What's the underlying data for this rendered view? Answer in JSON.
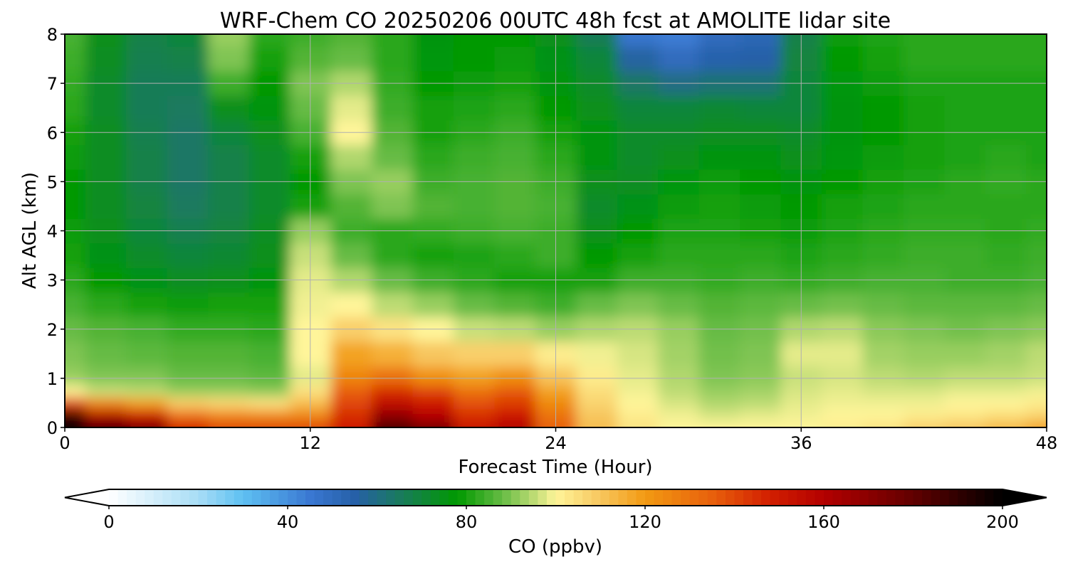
{
  "chart_data": {
    "type": "heatmap",
    "title": "WRF-Chem CO  20250206 00UTC 48h fcst at AMOLITE lidar site",
    "xlabel": "Forecast Time (Hour)",
    "ylabel": "Alt AGL (km)",
    "xlim": [
      0,
      48
    ],
    "ylim": [
      0,
      8
    ],
    "xticks": [
      0,
      12,
      24,
      36,
      48
    ],
    "yticks": [
      0,
      1,
      2,
      3,
      4,
      5,
      6,
      7,
      8
    ],
    "grid": true,
    "colorbar": {
      "label": "CO  (ppbv)",
      "min": 0,
      "max": 200,
      "ticks": [
        0,
        40,
        80,
        120,
        160,
        200
      ],
      "extend": "both",
      "orientation": "horizontal",
      "placement": "bottom",
      "colors": [
        [
          0,
          "#ffffff"
        ],
        [
          20,
          "#a8ddf6"
        ],
        [
          30,
          "#5ec0f2"
        ],
        [
          45,
          "#3a78d2"
        ],
        [
          55,
          "#2660a8"
        ],
        [
          65,
          "#1a7a5e"
        ],
        [
          78,
          "#009900"
        ],
        [
          88,
          "#66bb44"
        ],
        [
          96,
          "#c8e07a"
        ],
        [
          100,
          "#fff59a"
        ],
        [
          110,
          "#f7c65e"
        ],
        [
          120,
          "#f29a12"
        ],
        [
          135,
          "#e8600c"
        ],
        [
          148,
          "#d21e00"
        ],
        [
          160,
          "#b30000"
        ],
        [
          178,
          "#6a0000"
        ],
        [
          200,
          "#000000"
        ]
      ]
    },
    "x": [
      0,
      2,
      4,
      6,
      8,
      10,
      12,
      14,
      16,
      18,
      20,
      22,
      24,
      26,
      28,
      30,
      32,
      34,
      36,
      38,
      40,
      42,
      44,
      46,
      48
    ],
    "y": [
      0,
      0.25,
      0.5,
      0.75,
      1,
      1.5,
      2,
      2.5,
      3,
      3.5,
      4,
      4.5,
      5,
      5.5,
      6,
      6.5,
      7,
      7.5,
      8
    ],
    "z": [
      [
        198,
        185,
        175,
        148,
        140,
        140,
        140,
        150,
        185,
        175,
        152,
        160,
        135,
        112,
        104,
        100,
        100,
        100,
        100,
        102,
        104,
        108,
        110,
        113,
        118
      ],
      [
        190,
        160,
        150,
        130,
        125,
        124,
        125,
        145,
        168,
        158,
        145,
        150,
        130,
        110,
        102,
        99,
        97,
        98,
        99,
        100,
        100,
        102,
        103,
        105,
        107
      ],
      [
        140,
        125,
        118,
        108,
        106,
        104,
        112,
        140,
        155,
        150,
        138,
        142,
        124,
        107,
        100,
        97,
        94,
        95,
        98,
        99,
        99,
        99,
        100,
        100,
        102
      ],
      [
        100,
        96,
        95,
        92,
        92,
        91,
        104,
        135,
        145,
        140,
        130,
        136,
        118,
        105,
        99,
        95,
        92,
        93,
        97,
        98,
        97,
        97,
        98,
        98,
        99
      ],
      [
        92,
        90,
        90,
        88,
        88,
        87,
        98,
        125,
        130,
        122,
        118,
        122,
        110,
        102,
        98,
        94,
        90,
        91,
        96,
        97,
        95,
        94,
        95,
        95,
        96
      ],
      [
        90,
        88,
        87,
        86,
        86,
        85,
        100,
        118,
        115,
        110,
        108,
        108,
        102,
        99,
        97,
        93,
        89,
        90,
        98,
        98,
        93,
        92,
        92,
        93,
        95
      ],
      [
        88,
        86,
        85,
        83,
        83,
        82,
        100,
        108,
        104,
        100,
        96,
        95,
        92,
        94,
        95,
        92,
        88,
        89,
        94,
        95,
        91,
        90,
        89,
        90,
        91
      ],
      [
        85,
        82,
        80,
        79,
        80,
        80,
        99,
        100,
        95,
        92,
        88,
        86,
        84,
        88,
        90,
        88,
        86,
        87,
        88,
        89,
        88,
        87,
        87,
        87,
        88
      ],
      [
        82,
        78,
        75,
        73,
        74,
        76,
        98,
        94,
        88,
        84,
        82,
        80,
        80,
        80,
        84,
        84,
        83,
        84,
        83,
        84,
        85,
        85,
        84,
        84,
        85
      ],
      [
        80,
        75,
        72,
        70,
        71,
        74,
        96,
        88,
        82,
        80,
        81,
        82,
        84,
        78,
        80,
        82,
        82,
        82,
        81,
        82,
        83,
        84,
        84,
        83,
        84
      ],
      [
        79,
        74,
        70,
        67,
        69,
        73,
        92,
        84,
        82,
        83,
        84,
        85,
        84,
        74,
        78,
        81,
        81,
        80,
        79,
        81,
        82,
        83,
        83,
        82,
        83
      ],
      [
        78,
        73,
        69,
        65,
        68,
        72,
        80,
        86,
        90,
        86,
        85,
        86,
        85,
        72,
        75,
        79,
        80,
        79,
        78,
        80,
        81,
        82,
        82,
        82,
        82
      ],
      [
        78,
        73,
        68,
        64,
        68,
        72,
        78,
        90,
        92,
        84,
        85,
        86,
        84,
        74,
        73,
        77,
        79,
        78,
        76,
        78,
        80,
        81,
        82,
        83,
        82
      ],
      [
        79,
        73,
        68,
        64,
        68,
        72,
        80,
        94,
        88,
        82,
        84,
        85,
        82,
        76,
        72,
        74,
        76,
        76,
        74,
        77,
        79,
        80,
        81,
        82,
        81
      ],
      [
        80,
        73,
        67,
        64,
        70,
        74,
        85,
        100,
        86,
        80,
        82,
        84,
        80,
        76,
        72,
        72,
        73,
        73,
        72,
        76,
        78,
        80,
        81,
        81,
        81
      ],
      [
        82,
        72,
        66,
        65,
        74,
        76,
        88,
        98,
        84,
        80,
        81,
        82,
        78,
        74,
        70,
        70,
        71,
        70,
        70,
        76,
        78,
        80,
        81,
        81,
        81
      ],
      [
        83,
        72,
        66,
        66,
        84,
        78,
        90,
        94,
        83,
        78,
        79,
        80,
        76,
        72,
        64,
        60,
        62,
        62,
        70,
        77,
        79,
        81,
        81,
        81,
        81
      ],
      [
        84,
        73,
        67,
        68,
        90,
        80,
        86,
        88,
        82,
        77,
        78,
        79,
        75,
        70,
        56,
        50,
        54,
        55,
        69,
        78,
        80,
        82,
        82,
        82,
        82
      ],
      [
        85,
        74,
        68,
        70,
        92,
        82,
        84,
        86,
        82,
        76,
        78,
        78,
        74,
        66,
        46,
        44,
        50,
        52,
        68,
        79,
        81,
        82,
        82,
        82,
        82
      ]
    ]
  }
}
